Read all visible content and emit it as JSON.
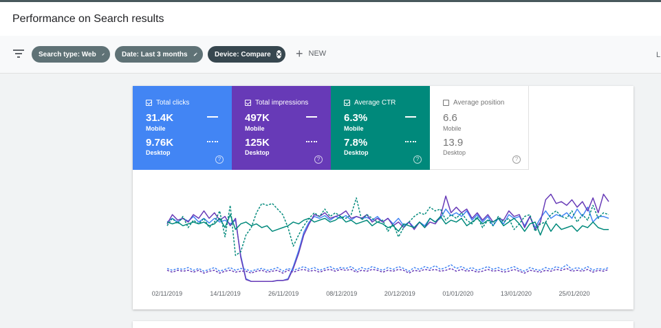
{
  "header": {
    "title": "Performance on Search results"
  },
  "filters": {
    "chips": [
      {
        "label": "Search type: Web"
      },
      {
        "label": "Date: Last 3 months"
      },
      {
        "label": "Device: Compare"
      }
    ],
    "new_label": "NEW",
    "edge_text": "L"
  },
  "metrics": [
    {
      "label": "Total clicks",
      "checked": true,
      "color": "#4285f4",
      "value1": "31.4K",
      "sub1": "Mobile",
      "value2": "9.76K",
      "sub2": "Desktop"
    },
    {
      "label": "Total impressions",
      "checked": true,
      "color": "#673ab7",
      "value1": "497K",
      "sub1": "Mobile",
      "value2": "125K",
      "sub2": "Desktop"
    },
    {
      "label": "Average CTR",
      "checked": true,
      "color": "#00897b",
      "value1": "6.3%",
      "sub1": "Mobile",
      "value2": "7.8%",
      "sub2": "Desktop"
    },
    {
      "label": "Average position",
      "checked": false,
      "color": "#ffffff",
      "value1": "6.6",
      "sub1": "Mobile",
      "value2": "13.9",
      "sub2": "Desktop"
    }
  ],
  "help_glyph": "?",
  "chart_data": {
    "type": "line",
    "x_tick_labels": [
      "02/11/2019",
      "14/11/2019",
      "26/11/2019",
      "08/12/2019",
      "20/12/2019",
      "01/01/2020",
      "13/01/2020",
      "25/01/2020"
    ],
    "ylim": [
      0,
      100
    ],
    "series": [
      {
        "metric": "Total clicks",
        "device": "Mobile",
        "color": "#4285f4",
        "style": "solid",
        "values": [
          66,
          70,
          66,
          70,
          67,
          72,
          66,
          70,
          65,
          70,
          66,
          68,
          64,
          68,
          30,
          5,
          2,
          2,
          2,
          2,
          2,
          3,
          3,
          5,
          18,
          35,
          55,
          66,
          72,
          70,
          73,
          68,
          72,
          70,
          73,
          68,
          72,
          70,
          71,
          68,
          72,
          66,
          70,
          64,
          70,
          62,
          66,
          60,
          66,
          62,
          70,
          66,
          70,
          80,
          73,
          76,
          72,
          78,
          68,
          74,
          66,
          72,
          62,
          70,
          64,
          74,
          70,
          72,
          62,
          72,
          60,
          70,
          78,
          70,
          74,
          72,
          76,
          70,
          80,
          72,
          82,
          66,
          72,
          72,
          70
        ]
      },
      {
        "metric": "Total impressions",
        "device": "Mobile",
        "color": "#673ab7",
        "style": "solid",
        "values": [
          64,
          74,
          68,
          70,
          66,
          74,
          70,
          78,
          70,
          76,
          68,
          72,
          62,
          70,
          28,
          4,
          2,
          2,
          2,
          2,
          2,
          3,
          3,
          4,
          16,
          32,
          52,
          64,
          74,
          72,
          76,
          70,
          72,
          74,
          78,
          70,
          72,
          70,
          74,
          66,
          70,
          66,
          70,
          62,
          66,
          60,
          66,
          58,
          66,
          60,
          66,
          64,
          72,
          94,
          76,
          82,
          76,
          80,
          70,
          76,
          68,
          74,
          66,
          70,
          68,
          78,
          72,
          74,
          60,
          72,
          58,
          66,
          90,
          96,
          86,
          88,
          84,
          90,
          82,
          88,
          78,
          92,
          76,
          96,
          88
        ]
      },
      {
        "metric": "Average CTR",
        "device": "Mobile",
        "color": "#00897b",
        "style": "solid",
        "values": [
          66,
          64,
          66,
          62,
          64,
          66,
          64,
          66,
          62,
          64,
          70,
          60,
          74,
          58,
          64,
          66,
          62,
          64,
          60,
          62,
          56,
          58,
          60,
          62,
          66,
          64,
          68,
          70,
          66,
          68,
          70,
          66,
          68,
          72,
          66,
          68,
          64,
          66,
          68,
          62,
          66,
          64,
          60,
          62,
          56,
          64,
          62,
          60,
          66,
          60,
          70,
          66,
          72,
          64,
          68,
          66,
          70,
          62,
          66,
          70,
          64,
          68,
          66,
          70,
          62,
          66,
          70,
          64,
          56,
          64,
          66,
          52,
          66,
          56,
          64,
          58,
          60,
          62,
          56,
          62,
          60,
          66,
          60,
          58,
          58
        ]
      },
      {
        "metric": "Average CTR",
        "device": "Desktop",
        "color": "#00897b",
        "style": "dashed",
        "values": [
          62,
          70,
          64,
          72,
          60,
          68,
          64,
          70,
          60,
          66,
          78,
          50,
          84,
          30,
          34,
          52,
          60,
          76,
          86,
          84,
          86,
          80,
          74,
          60,
          40,
          52,
          62,
          70,
          76,
          72,
          80,
          72,
          76,
          72,
          70,
          74,
          92,
          68,
          74,
          70,
          66,
          68,
          56,
          64,
          50,
          60,
          66,
          72,
          76,
          74,
          82,
          78,
          80,
          68,
          74,
          70,
          76,
          68,
          64,
          72,
          60,
          68,
          62,
          72,
          66,
          70,
          58,
          64,
          72,
          74,
          56,
          64,
          66,
          74,
          78,
          72,
          70,
          78,
          66,
          74,
          68,
          84,
          70,
          76,
          74
        ]
      },
      {
        "metric": "Total clicks",
        "device": "Desktop",
        "color": "#4285f4",
        "style": "dashed",
        "values": [
          16,
          14,
          16,
          15,
          17,
          14,
          16,
          13,
          15,
          17,
          13,
          15,
          17,
          14,
          16,
          15,
          13,
          15,
          16,
          14,
          15,
          17,
          13,
          16,
          14,
          16,
          18,
          15,
          17,
          14,
          16,
          18,
          15,
          17,
          16,
          18,
          14,
          17,
          15,
          18,
          16,
          14,
          17,
          15,
          18,
          16,
          13,
          17,
          15,
          18,
          16,
          19,
          15,
          17,
          20,
          16,
          18,
          15,
          17,
          14,
          16,
          18,
          15,
          17,
          14,
          16,
          18,
          15,
          13,
          17,
          15,
          14,
          17,
          15,
          18,
          16,
          20,
          15,
          17,
          15,
          18,
          14,
          16,
          15,
          17
        ]
      },
      {
        "metric": "Total impressions",
        "device": "Desktop",
        "color": "#673ab7",
        "style": "dashed",
        "values": [
          14,
          12,
          14,
          13,
          14,
          12,
          14,
          11,
          13,
          14,
          11,
          13,
          14,
          12,
          13,
          13,
          11,
          13,
          14,
          12,
          13,
          14,
          11,
          14,
          12,
          14,
          15,
          13,
          14,
          12,
          14,
          15,
          13,
          15,
          14,
          15,
          12,
          14,
          13,
          15,
          14,
          12,
          14,
          13,
          15,
          14,
          11,
          14,
          13,
          15,
          14,
          15,
          13,
          14,
          16,
          13,
          15,
          13,
          14,
          12,
          13,
          15,
          13,
          14,
          12,
          13,
          15,
          13,
          11,
          14,
          13,
          12,
          14,
          13,
          15,
          14,
          16,
          13,
          14,
          13,
          15,
          12,
          14,
          13,
          15
        ]
      }
    ]
  }
}
